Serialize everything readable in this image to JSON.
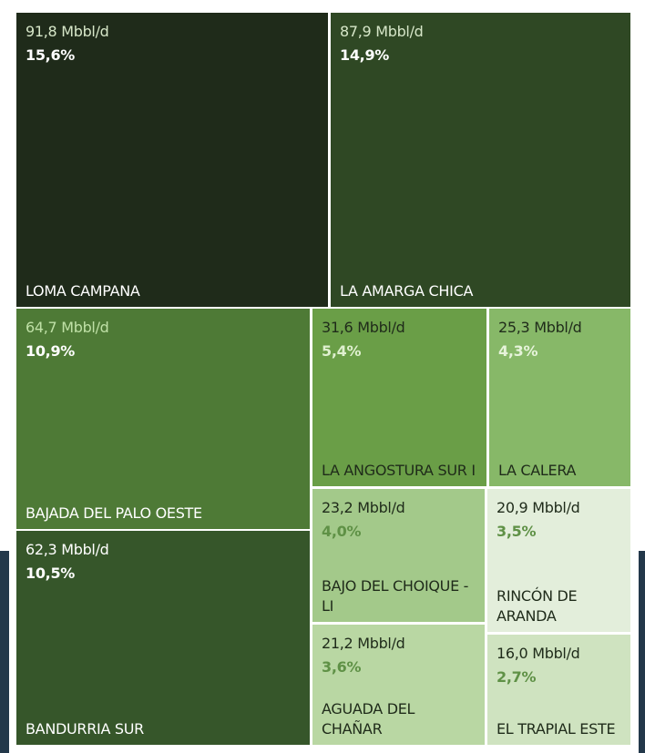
{
  "chart_data": {
    "type": "treemap",
    "items": [
      {
        "name": "LOMA CAMPANA",
        "value": 91.8,
        "value_label": "91,8 Mbbl/d",
        "percent": 15.6,
        "percent_label": "15,6%",
        "color": "#1f2b1a"
      },
      {
        "name": "LA AMARGA CHICA",
        "value": 87.9,
        "value_label": "87,9 Mbbl/d",
        "percent": 14.9,
        "percent_label": "14,9%",
        "color": "#2f4824"
      },
      {
        "name": "BAJADA DEL PALO OESTE",
        "value": 64.7,
        "value_label": "64,7 Mbbl/d",
        "percent": 10.9,
        "percent_label": "10,9%",
        "color": "#4e7a36"
      },
      {
        "name": "BANDURRIA SUR",
        "value": 62.3,
        "value_label": "62,3 Mbbl/d",
        "percent": 10.5,
        "percent_label": "10,5%",
        "color": "#36562a"
      },
      {
        "name": "LA ANGOSTURA SUR I",
        "value": 31.6,
        "value_label": "31,6 Mbbl/d",
        "percent": 5.4,
        "percent_label": "5,4%",
        "color": "#6a9e47"
      },
      {
        "name": "LA CALERA",
        "value": 25.3,
        "value_label": "25,3 Mbbl/d",
        "percent": 4.3,
        "percent_label": "4,3%",
        "color": "#87b868"
      },
      {
        "name": "BAJO DEL CHOIQUE -LI",
        "value": 23.2,
        "value_label": "23,2 Mbbl/d",
        "percent": 4.0,
        "percent_label": "4,0%",
        "color": "#a3c98a"
      },
      {
        "name": "RINCÓN DE ARANDA",
        "value": 20.9,
        "value_label": "20,9 Mbbl/d",
        "percent": 3.5,
        "percent_label": "3,5%",
        "color": "#e3eedb"
      },
      {
        "name": "AGUADA DEL CHAÑAR",
        "value": 21.2,
        "value_label": "21,2 Mbbl/d",
        "percent": 3.6,
        "percent_label": "3,6%",
        "color": "#b9d7a3"
      },
      {
        "name": "EL TRAPIAL ESTE",
        "value": 16.0,
        "value_label": "16,0 Mbbl/d",
        "percent": 2.7,
        "percent_label": "2,7%",
        "color": "#cfe3c0"
      }
    ]
  }
}
